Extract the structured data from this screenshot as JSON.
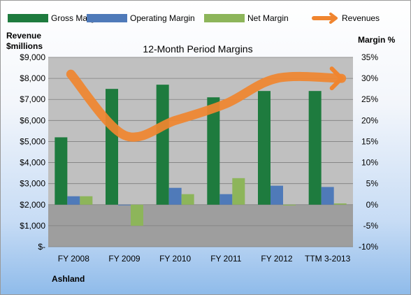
{
  "chart_data": {
    "type": "bar",
    "title": "12-Month Period Margins",
    "company": "Ashland",
    "ylabel_left": [
      "Revenue",
      "$millions"
    ],
    "ylabel_right": "Margin %",
    "categories": [
      "FY 2008",
      "FY 2009",
      "FY 2010",
      "FY 2011",
      "FY 2012",
      "TTM 3-2013"
    ],
    "ylim_left": [
      0,
      9000
    ],
    "ylim_right": [
      -10,
      35
    ],
    "left_ticks": [
      "$-",
      "$1,000",
      "$2,000",
      "$3,000",
      "$4,000",
      "$5,000",
      "$6,000",
      "$7,000",
      "$8,000",
      "$9,000"
    ],
    "right_ticks": [
      "-10%",
      "-5%",
      "0%",
      "5%",
      "10%",
      "15%",
      "20%",
      "25%",
      "30%",
      "35%"
    ],
    "series": [
      {
        "name": "Gross Margin",
        "axis": "right",
        "color": "#1e7b3e",
        "values": [
          16,
          27.5,
          28.5,
          25.5,
          27,
          27
        ]
      },
      {
        "name": "Operating Margin",
        "axis": "right",
        "color": "#4f7ab9",
        "values": [
          2,
          0,
          4,
          2.5,
          4.5,
          4.2
        ]
      },
      {
        "name": "Net Margin",
        "axis": "right",
        "color": "#8db55a",
        "values": [
          2,
          -5,
          2.5,
          6.3,
          -0.2,
          0.3
        ]
      },
      {
        "name": "Revenues",
        "axis": "left",
        "color": "#f0852f",
        "type": "line",
        "values": [
          8200,
          5300,
          6000,
          6800,
          8000,
          8000
        ]
      }
    ],
    "grid": true,
    "legend": "top"
  }
}
